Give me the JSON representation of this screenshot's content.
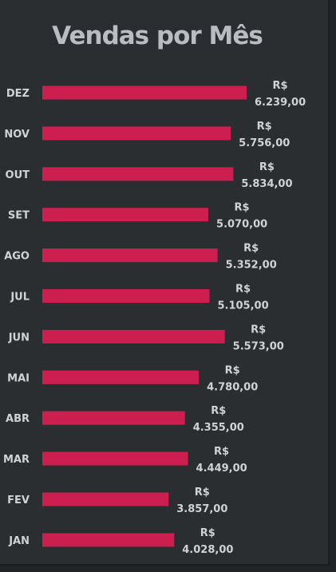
{
  "chart_data": {
    "type": "bar",
    "orientation": "horizontal",
    "title": "Vendas por Mês",
    "categories": [
      "DEZ",
      "NOV",
      "OUT",
      "SET",
      "AGO",
      "JUL",
      "JUN",
      "MAI",
      "ABR",
      "MAR",
      "FEV",
      "JAN"
    ],
    "values": [
      6239.0,
      5756.0,
      5834.0,
      5070.0,
      5352.0,
      5105.0,
      5573.0,
      4780.0,
      4355.0,
      4449.0,
      3857.0,
      4028.0
    ],
    "value_labels": [
      "R$\n6.239,00",
      "R$\n5.756,00",
      "R$\n5.834,00",
      "R$\n5.070,00",
      "R$\n5.352,00",
      "R$\n5.105,00",
      "R$\n5.573,00",
      "R$\n4.780,00",
      "R$\n4.355,00",
      "R$\n4.449,00",
      "R$\n3.857,00",
      "R$\n4.028,00"
    ],
    "xlabel": "",
    "ylabel": "",
    "grid": false,
    "legend": "none",
    "bar_color": "#cc1f4f"
  },
  "colors": {
    "background": "#2b2e31",
    "text": "#d0d2d5",
    "title": "#b9bcc0",
    "bar": "#cc1f4f"
  }
}
